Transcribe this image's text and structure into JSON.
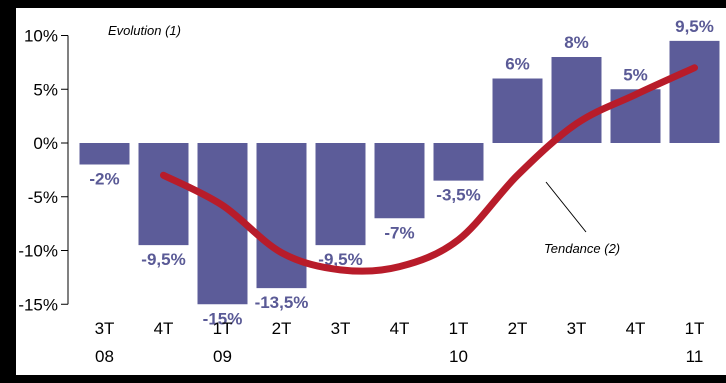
{
  "chart_data": {
    "type": "bar",
    "annotations": {
      "evolution": "Evolution (1)",
      "tendance": "Tendance (2)"
    },
    "y_ticks": [
      "10%",
      "5%",
      "0%",
      "-5%",
      "-10%",
      "-15%"
    ],
    "y_tick_values": [
      10,
      5,
      0,
      -5,
      -10,
      -15
    ],
    "ylim": [
      -15,
      10
    ],
    "categories": [
      "3T",
      "4T",
      "1T",
      "2T",
      "3T",
      "4T",
      "1T",
      "2T",
      "3T",
      "4T",
      "1T"
    ],
    "years": [
      "08",
      "",
      "09",
      "",
      "",
      "",
      "10",
      "",
      "",
      "",
      "11"
    ],
    "values": [
      -2,
      -9.5,
      -15,
      -13.5,
      -9.5,
      -7,
      -3.5,
      6,
      8,
      5,
      9.5
    ],
    "value_labels": [
      "-2%",
      "-9,5%",
      "-15%",
      "-13,5%",
      "-9,5%",
      "-7%",
      "-3,5%",
      "6%",
      "8%",
      "5%",
      "9,5%"
    ],
    "trend": {
      "x_index": [
        1,
        2,
        3,
        4,
        5,
        6,
        7,
        8,
        9,
        10
      ],
      "values": [
        -3,
        -5.8,
        -10.2,
        -11.8,
        -11.5,
        -9,
        -3,
        1.8,
        4.5,
        7
      ]
    },
    "colors": {
      "bar": "#5c5c99",
      "trend": "#b81c2a",
      "label": "#5a5a96"
    }
  }
}
